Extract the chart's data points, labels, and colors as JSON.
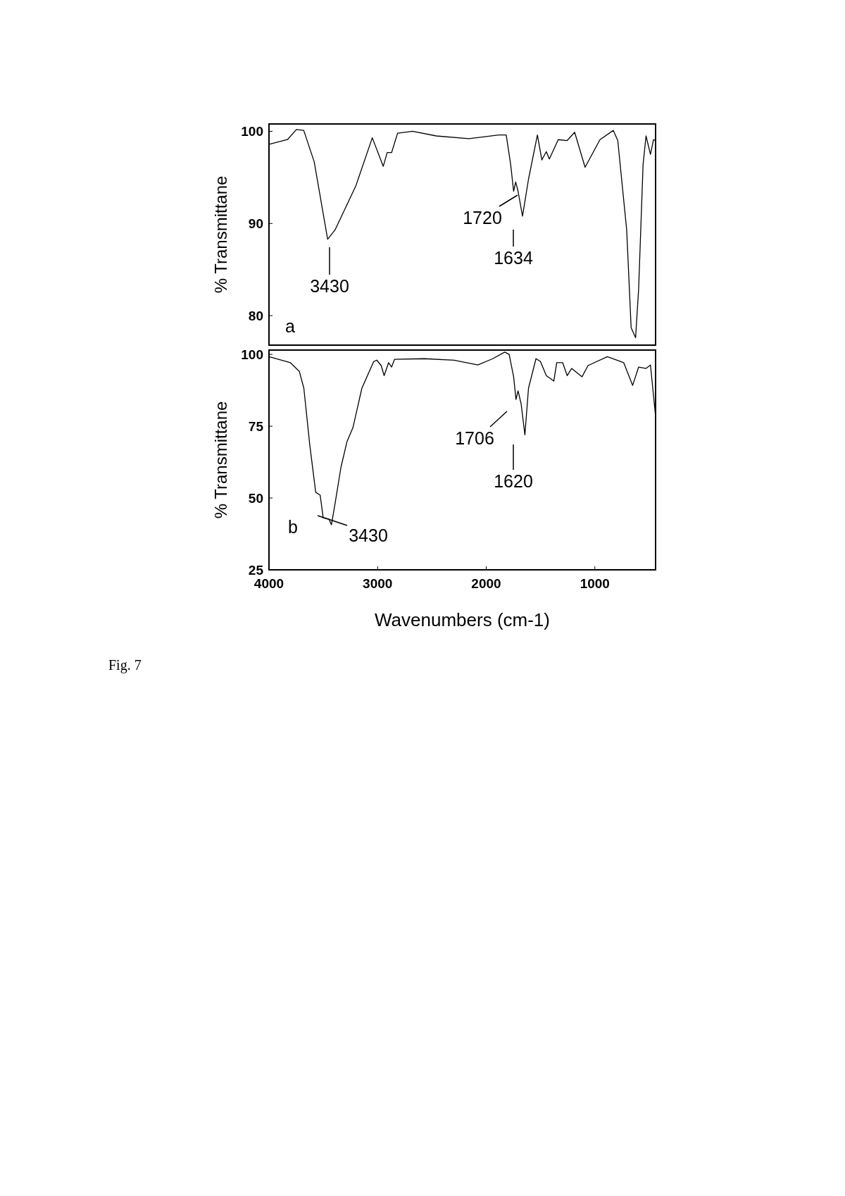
{
  "chart_data": [
    {
      "type": "line",
      "ylabel": "% Transmittane",
      "xlim": [
        4000,
        441
      ],
      "ylim": [
        76.8,
        100.8
      ],
      "yticks": [
        80,
        90,
        100
      ],
      "tick_labels": "y",
      "series": [
        {
          "color": "#000000",
          "x": [
            4000,
            3830,
            3748,
            3680,
            3584,
            3460,
            3392,
            3200,
            3049,
            2948,
            2912,
            2871,
            2816,
            2679,
            2460,
            2159,
            1885,
            1816,
            1775,
            1748,
            1729,
            1707,
            1666,
            1611,
            1529,
            1488,
            1447,
            1419,
            1337,
            1255,
            1186,
            1090,
            953,
            830,
            789,
            707,
            666,
            625,
            597,
            556,
            529,
            488,
            460,
            441
          ],
          "values": [
            98.6,
            99.1,
            100.2,
            100.1,
            96.7,
            88.3,
            89.3,
            94.1,
            99.3,
            96.2,
            97.7,
            97.7,
            99.8,
            100,
            99.5,
            99.2,
            99.6,
            99.6,
            96.4,
            93.5,
            94.5,
            93.5,
            90.8,
            94.8,
            99.6,
            96.9,
            97.8,
            97,
            99.1,
            99,
            99.9,
            96.1,
            99.1,
            100.1,
            99,
            89.3,
            78.7,
            77.6,
            82.9,
            96.4,
            99.5,
            97.5,
            99.1,
            99
          ]
        }
      ],
      "annotations": [
        "3430",
        "1720",
        "1634",
        "a"
      ]
    },
    {
      "type": "line",
      "ylabel": "% Transmittane",
      "xlabel": "Wavenumbers (cm-1)",
      "xlim": [
        4000,
        441
      ],
      "ylim": [
        25,
        101.5
      ],
      "xticks": [
        4000,
        3000,
        2000,
        1000
      ],
      "yticks": [
        25,
        50,
        75,
        100
      ],
      "series": [
        {
          "color": "#000000",
          "x": [
            4000,
            3803,
            3721,
            3679,
            3625,
            3570,
            3529,
            3501,
            3447,
            3425,
            3392,
            3337,
            3282,
            3227,
            3145,
            3036,
            3008,
            2967,
            2940,
            2899,
            2871,
            2844,
            2570,
            2296,
            2077,
            1940,
            1830,
            1789,
            1748,
            1726,
            1707,
            1679,
            1644,
            1611,
            1542,
            1501,
            1447,
            1378,
            1351,
            1296,
            1255,
            1214,
            1118,
            1063,
            885,
            734,
            652,
            597,
            529,
            488,
            441
          ],
          "values": [
            99.2,
            97.1,
            94.1,
            88.2,
            68.6,
            52,
            51,
            43.1,
            42.6,
            40.7,
            48,
            60.8,
            69.6,
            74.5,
            88.2,
            97.5,
            98,
            96.1,
            92.6,
            97.1,
            95.6,
            98.3,
            98.5,
            98,
            96.3,
            98.5,
            100.8,
            100,
            92.2,
            84.3,
            87.3,
            82.8,
            72,
            88.2,
            98.5,
            97.5,
            92.6,
            90.7,
            97.1,
            97.1,
            92.6,
            95.1,
            92.2,
            96.1,
            99.2,
            97.1,
            89.2,
            95.6,
            95.1,
            96.3,
            78.4
          ]
        }
      ],
      "annotations": [
        "3430",
        "1706",
        "1620",
        "b",
        "Fig. 7"
      ]
    }
  ]
}
